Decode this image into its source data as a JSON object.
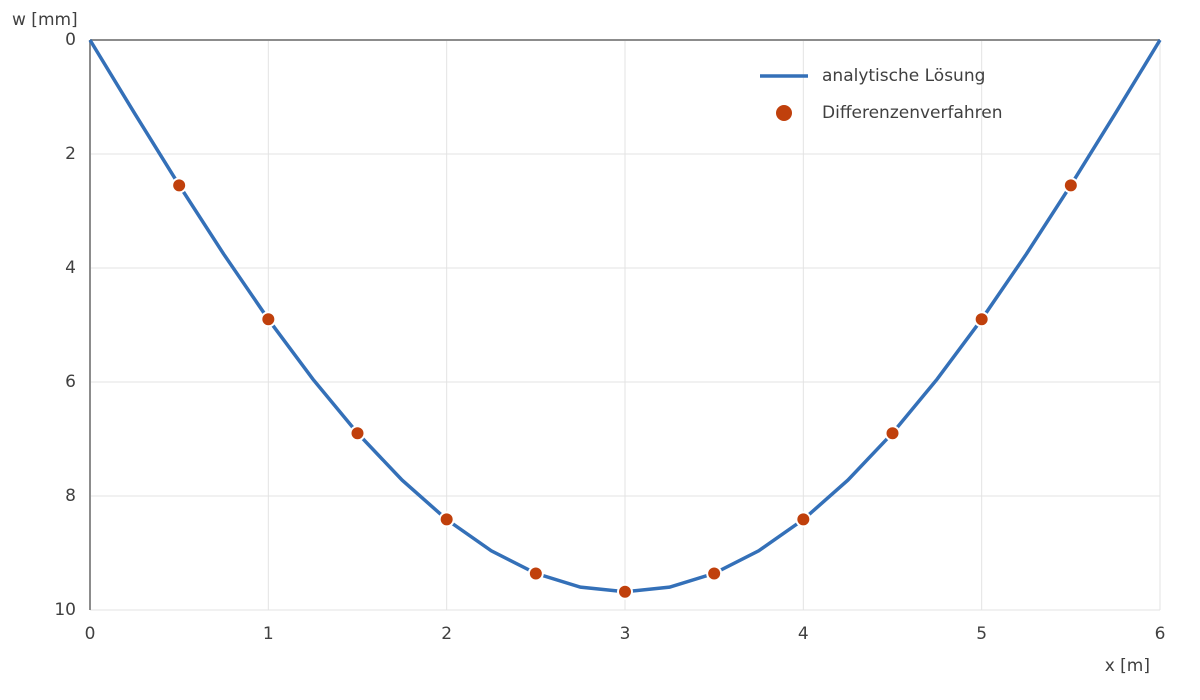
{
  "chart_data": {
    "type": "line",
    "xlabel": "x [m]",
    "ylabel": "w [mm]",
    "xlim": [
      0,
      6
    ],
    "xticks": [
      0,
      1,
      2,
      3,
      4,
      5,
      6
    ],
    "ylim": [
      0,
      10
    ],
    "yticks": [
      0,
      2,
      4,
      6,
      8,
      10
    ],
    "y_inverted": true,
    "grid": true,
    "legend": "upper right",
    "series": [
      {
        "name": "analytische Lösung",
        "type": "line",
        "color": "#3470b8",
        "x": [
          0,
          0.25,
          0.5,
          0.75,
          1,
          1.25,
          1.5,
          1.75,
          2,
          2.25,
          2.5,
          2.75,
          3,
          3.25,
          3.5,
          3.75,
          4,
          4.25,
          4.5,
          4.75,
          5,
          5.25,
          5.5,
          5.75,
          6
        ],
        "values": [
          0,
          1.286,
          2.547,
          3.758,
          4.9,
          5.951,
          6.897,
          7.721,
          8.413,
          8.961,
          9.358,
          9.599,
          9.68,
          9.599,
          9.358,
          8.961,
          8.413,
          7.721,
          6.897,
          5.951,
          4.9,
          3.758,
          2.547,
          1.286,
          0
        ]
      },
      {
        "name": "Differenzenverfahren",
        "type": "scatter",
        "color": "#c0400c",
        "x": [
          0.5,
          1,
          1.5,
          2,
          2.5,
          3,
          3.5,
          4,
          4.5,
          5,
          5.5
        ],
        "values": [
          2.55,
          4.9,
          6.9,
          8.41,
          9.36,
          9.68,
          9.36,
          8.41,
          6.9,
          4.9,
          2.55
        ]
      }
    ]
  }
}
